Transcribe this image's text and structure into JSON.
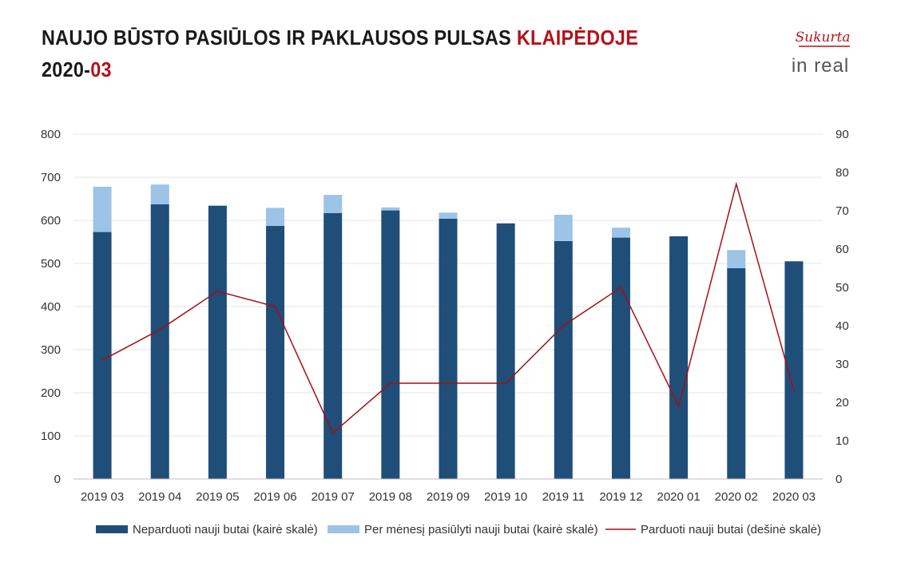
{
  "header": {
    "title_main": "NAUJO BŪSTO PASIŪLOS IR PAKLAUSOS PULSAS ",
    "title_city": "KLAIPĖDOJE",
    "date_year": "2020-",
    "date_month": "03"
  },
  "logo": {
    "script_text": "Sukurta",
    "brand_text": "in real"
  },
  "colors": {
    "accent": "#b5121b",
    "dark_bar": "#1f4e79",
    "light_bar": "#9dc3e6",
    "line": "#a50f15",
    "grid": "#e6e6e6"
  },
  "chart_data": {
    "type": "bar",
    "categories": [
      "2019 03",
      "2019 04",
      "2019 05",
      "2019 06",
      "2019 07",
      "2019 08",
      "2019 09",
      "2019 10",
      "2019 11",
      "2019 12",
      "2020 01",
      "2020 02",
      "2020 03"
    ],
    "series": [
      {
        "name": "Neparduoti nauji butai (kairė skalė)",
        "type": "bar",
        "stack": "left",
        "axis": "left",
        "values": [
          573,
          637,
          634,
          587,
          617,
          623,
          604,
          593,
          552,
          560,
          563,
          489,
          505
        ]
      },
      {
        "name": "Per mėnesį pasiūlyti nauji butai (kairė skalė)",
        "type": "bar",
        "stack": "left",
        "axis": "left",
        "values": [
          105,
          46,
          0,
          42,
          42,
          7,
          14,
          0,
          61,
          23,
          0,
          42,
          0
        ]
      },
      {
        "name": "Parduoti nauji butai (dešinė skalė)",
        "type": "line",
        "axis": "right",
        "values": [
          31,
          39,
          49,
          45,
          12,
          25,
          25,
          25,
          40,
          50,
          19,
          77,
          23
        ]
      }
    ],
    "y_left": {
      "min": 0,
      "max": 800,
      "step": 100
    },
    "y_right": {
      "min": 0,
      "max": 90,
      "step": 10
    },
    "grid": true,
    "legend_position": "bottom"
  }
}
